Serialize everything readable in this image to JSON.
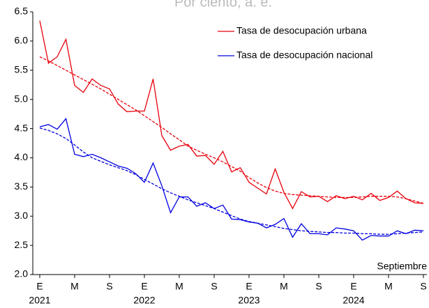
{
  "chart_data": {
    "type": "line",
    "subtitle": "Por ciento, a. e.",
    "categories": [
      "E",
      null,
      null,
      null,
      "M",
      null,
      null,
      null,
      "S",
      null,
      null,
      null,
      "E",
      null,
      null,
      null,
      "M",
      null,
      null,
      null,
      "S",
      null,
      null,
      null,
      "E",
      null,
      null,
      null,
      "M",
      null,
      null,
      null,
      "S",
      null,
      null,
      null,
      "E",
      null,
      null,
      null,
      "M",
      null,
      null,
      null,
      "S"
    ],
    "x_years": [
      "2021",
      null,
      null,
      null,
      null,
      null,
      null,
      null,
      null,
      null,
      null,
      null,
      "2022",
      null,
      null,
      null,
      null,
      null,
      null,
      null,
      null,
      null,
      null,
      null,
      "2023",
      null,
      null,
      null,
      null,
      null,
      null,
      null,
      null,
      null,
      null,
      null,
      "2024",
      null,
      null,
      null,
      null,
      null,
      null,
      null,
      null
    ],
    "series": [
      {
        "name": "Tasa de desocupación urbana",
        "color": "#e8000b",
        "values": [
          6.35,
          5.62,
          5.73,
          6.03,
          5.24,
          5.12,
          5.35,
          5.24,
          5.18,
          4.92,
          4.79,
          4.8,
          4.8,
          5.35,
          4.38,
          4.13,
          4.2,
          4.23,
          4.03,
          4.04,
          3.89,
          4.11,
          3.76,
          3.83,
          3.58,
          3.48,
          3.38,
          3.81,
          3.41,
          3.13,
          3.42,
          3.33,
          3.34,
          3.25,
          3.35,
          3.3,
          3.34,
          3.28,
          3.39,
          3.27,
          3.32,
          3.43,
          3.3,
          3.23,
          3.22
        ]
      },
      {
        "name": "Tasa de desocupación nacional",
        "color": "#0000e0",
        "values": [
          4.53,
          4.57,
          4.49,
          4.67,
          4.06,
          4.02,
          4.06,
          4.0,
          3.93,
          3.86,
          3.82,
          3.73,
          3.58,
          3.91,
          3.52,
          3.06,
          3.33,
          3.33,
          3.17,
          3.23,
          3.13,
          3.19,
          2.95,
          2.94,
          2.9,
          2.88,
          2.8,
          2.86,
          2.96,
          2.64,
          2.87,
          2.7,
          2.7,
          2.68,
          2.8,
          2.78,
          2.75,
          2.59,
          2.67,
          2.66,
          2.66,
          2.75,
          2.7,
          2.76,
          2.75
        ]
      }
    ],
    "trends": [
      {
        "color": "#e8000b",
        "values": [
          5.73,
          5.66,
          5.58,
          5.5,
          5.42,
          5.34,
          5.26,
          5.18,
          5.09,
          5.0,
          4.91,
          4.82,
          4.72,
          4.62,
          4.52,
          4.41,
          4.31,
          4.2,
          4.13,
          4.06,
          4.0,
          3.93,
          3.85,
          3.77,
          3.66,
          3.57,
          3.49,
          3.43,
          3.39,
          3.37,
          3.36,
          3.35,
          3.34,
          3.33,
          3.32,
          3.32,
          3.32,
          3.33,
          3.34,
          3.34,
          3.34,
          3.33,
          3.3,
          3.26,
          3.22
        ]
      },
      {
        "color": "#0000e0",
        "values": [
          4.51,
          4.47,
          4.41,
          4.33,
          4.22,
          4.1,
          4.0,
          3.94,
          3.88,
          3.83,
          3.78,
          3.71,
          3.63,
          3.55,
          3.47,
          3.4,
          3.34,
          3.28,
          3.23,
          3.18,
          3.13,
          3.07,
          3.01,
          2.95,
          2.91,
          2.88,
          2.85,
          2.82,
          2.79,
          2.77,
          2.75,
          2.74,
          2.73,
          2.72,
          2.72,
          2.71,
          2.71,
          2.7,
          2.7,
          2.69,
          2.69,
          2.7,
          2.71,
          2.72,
          2.73
        ]
      }
    ],
    "annotation": "Septiembre",
    "ylim": [
      2.0,
      6.5
    ],
    "yticks": [
      {
        "value": 2,
        "label": "2.0"
      },
      2.5,
      {
        "value": 3,
        "label": "3.0"
      },
      3.5,
      {
        "value": 4,
        "label": "4.0"
      },
      4.5,
      {
        "value": 5,
        "label": "5.0"
      },
      5.5,
      {
        "value": 6,
        "label": "6.0"
      },
      6.5
    ],
    "legend": "upper-right"
  }
}
